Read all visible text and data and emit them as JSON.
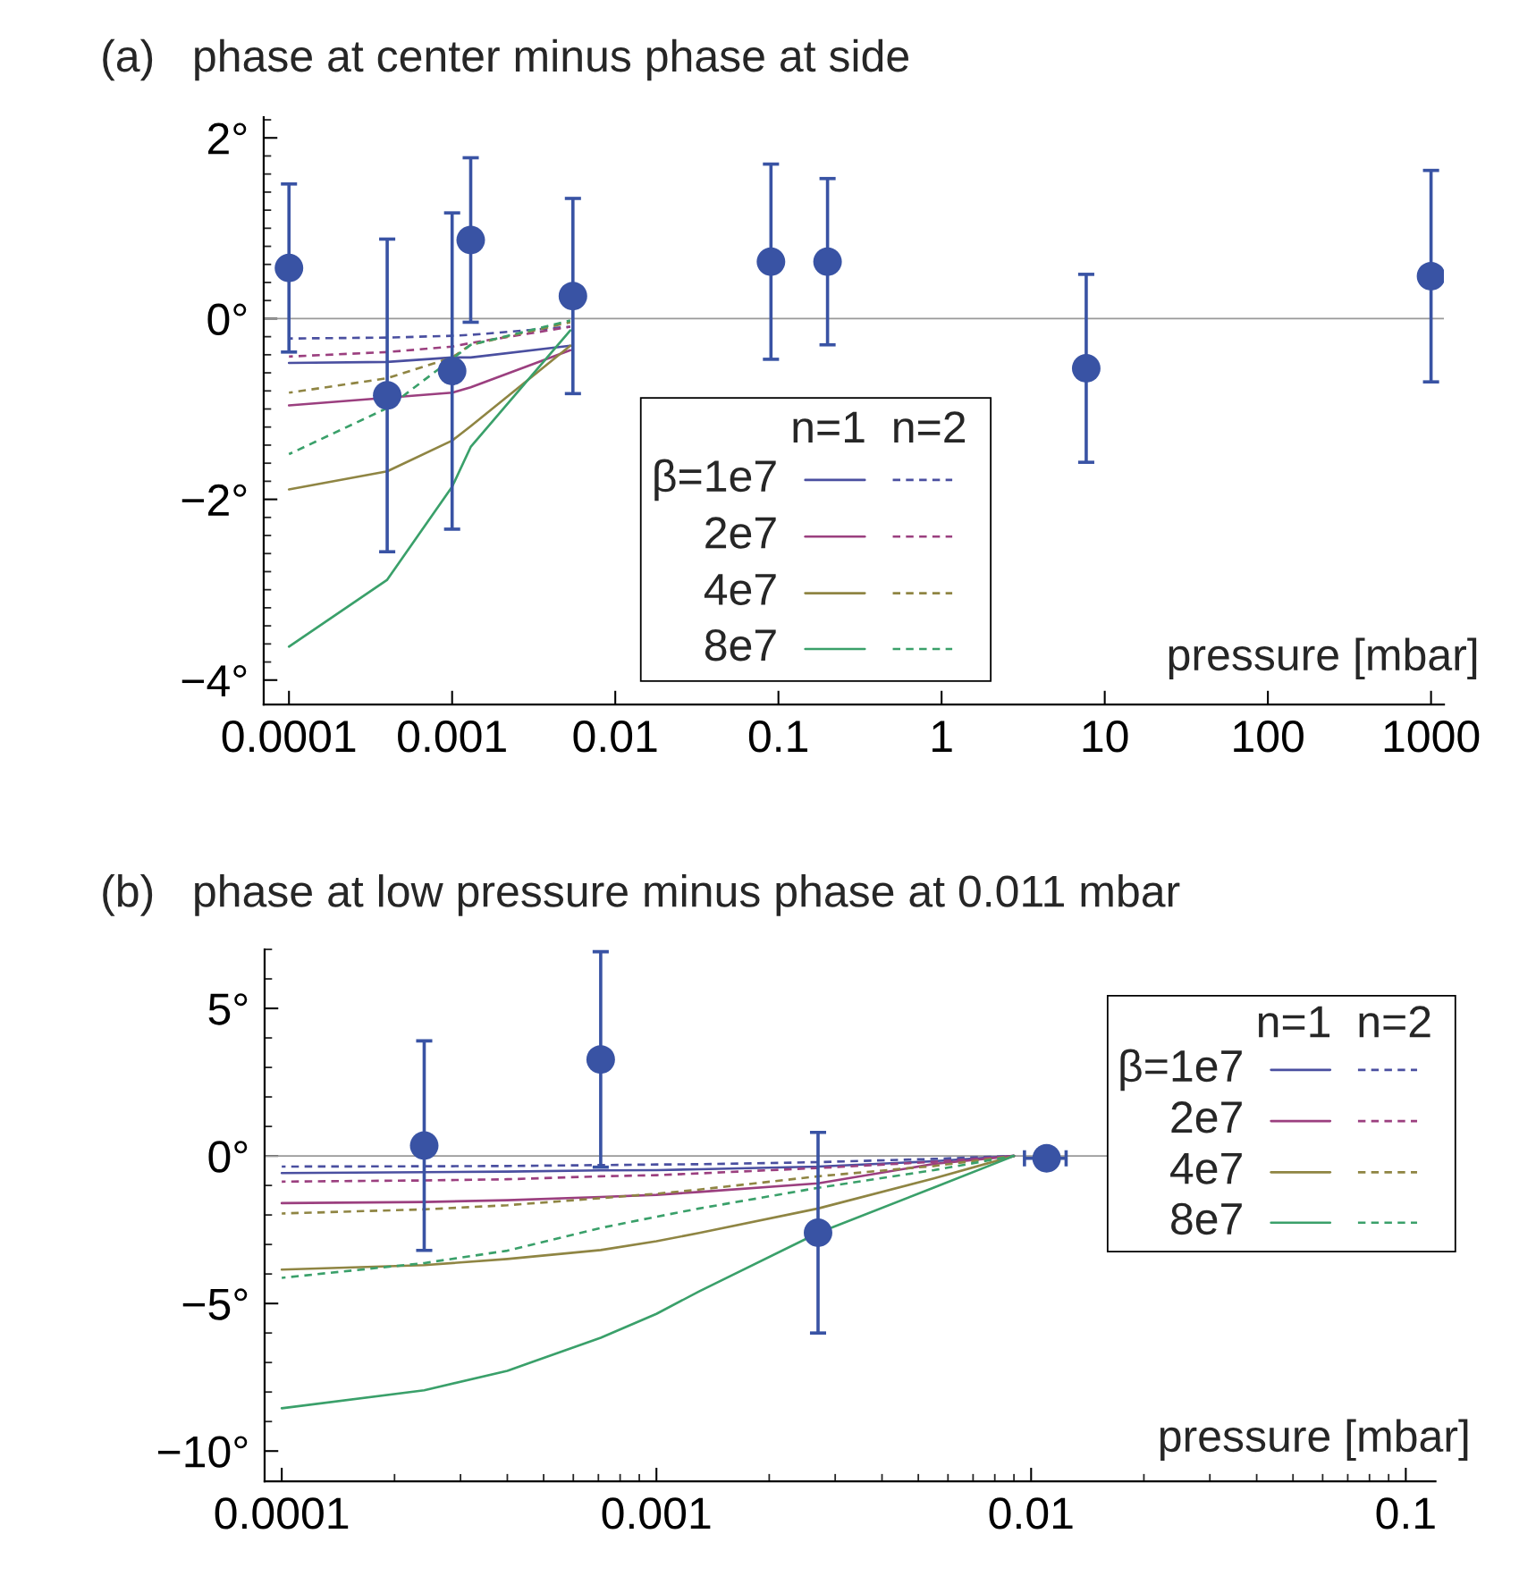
{
  "chart_data": [
    {
      "type": "scatter",
      "title": "(a)   phase at center minus phase at side",
      "xlabel": "pressure [mbar]",
      "log": "x",
      "xlim": [
        7e-05,
        1200
      ],
      "ylim": [
        -4.27,
        2.23
      ],
      "xticks": [
        {
          "value": 0.0001,
          "label": "0.0001"
        },
        {
          "value": 0.001,
          "label": "0.001"
        },
        {
          "value": 0.01,
          "label": "0.01"
        },
        {
          "value": 0.1,
          "label": "0.1"
        },
        {
          "value": 1,
          "label": "1"
        },
        {
          "value": 10,
          "label": "10"
        },
        {
          "value": 100,
          "label": "100"
        },
        {
          "value": 1000,
          "label": "1000"
        }
      ],
      "yticks": [
        {
          "value": 2,
          "label": "2°"
        },
        {
          "value": 0,
          "label": "0°"
        },
        {
          "value": -2,
          "label": "−2°"
        },
        {
          "value": -4,
          "label": "−4°"
        },
        {
          "value": 2.2,
          "label": null
        },
        {
          "value": 1.8,
          "label": null
        },
        {
          "value": 1.6,
          "label": null
        },
        {
          "value": 1.4,
          "label": null
        },
        {
          "value": 1.2,
          "label": null
        },
        {
          "value": 1.0,
          "label": null
        },
        {
          "value": 0.8,
          "label": null
        },
        {
          "value": 0.6,
          "label": null
        },
        {
          "value": 0.4,
          "label": null
        },
        {
          "value": 0.2,
          "label": null
        },
        {
          "value": -0.2,
          "label": null
        },
        {
          "value": -0.4,
          "label": null
        },
        {
          "value": -0.6,
          "label": null
        },
        {
          "value": -0.8,
          "label": null
        },
        {
          "value": -1.0,
          "label": null
        },
        {
          "value": -1.2,
          "label": null
        },
        {
          "value": -1.4,
          "label": null
        },
        {
          "value": -1.6,
          "label": null
        },
        {
          "value": -1.8,
          "label": null
        },
        {
          "value": -2.2,
          "label": null
        },
        {
          "value": -2.4,
          "label": null
        },
        {
          "value": -2.6,
          "label": null
        },
        {
          "value": -2.8,
          "label": null
        },
        {
          "value": -3.0,
          "label": null
        },
        {
          "value": -3.2,
          "label": null
        },
        {
          "value": -3.4,
          "label": null
        },
        {
          "value": -3.6,
          "label": null
        },
        {
          "value": -3.8,
          "label": null
        }
      ],
      "ref_lines": [
        {
          "axis": "y",
          "value": 0,
          "color": "#999999"
        }
      ],
      "legend": "bottom",
      "legend_title": "n=1  n=2",
      "series": [
        {
          "color": "#3953a4",
          "marker": "circle",
          "x": [
            0.0001,
            0.0004,
            0.001,
            0.0013,
            0.0055,
            0.09,
            0.2,
            7.7,
            1000
          ],
          "values": [
            0.56,
            -0.85,
            -0.58,
            0.87,
            0.25,
            0.63,
            0.63,
            -0.55,
            0.47
          ],
          "errors": [
            0.93,
            1.73,
            1.75,
            0.91,
            1.08,
            1.08,
            0.92,
            1.04,
            1.17
          ]
        },
        {
          "type": "line",
          "name": "β=1e7",
          "color": "#4a4fa0",
          "line_style": "solid",
          "x": [
            0.0001,
            0.0004,
            0.001,
            0.0013,
            0.0053
          ],
          "values": [
            -0.49,
            -0.48,
            -0.43,
            -0.43,
            -0.3
          ]
        },
        {
          "type": "line",
          "name": "2e7",
          "color": "#9b3f7f",
          "line_style": "solid",
          "x": [
            0.0001,
            0.001,
            0.0013,
            0.0053
          ],
          "values": [
            -0.96,
            -0.82,
            -0.76,
            -0.35
          ]
        },
        {
          "type": "line",
          "name": "4e7",
          "color": "#8f8543",
          "line_style": "solid",
          "x": [
            0.0001,
            0.0004,
            0.001,
            0.0013,
            0.0053
          ],
          "values": [
            -1.89,
            -1.69,
            -1.35,
            -1.19,
            -0.3
          ]
        },
        {
          "type": "line",
          "name": "8e7",
          "color": "#3aa06a",
          "line_style": "solid",
          "x": [
            0.0001,
            0.0004,
            0.001,
            0.0013,
            0.0053
          ],
          "values": [
            -3.63,
            -2.89,
            -1.86,
            -1.42,
            -0.13
          ]
        },
        {
          "type": "line",
          "color": "#4a4fa0",
          "line_style": "dashed",
          "x": [
            0.0001,
            0.0004,
            0.001,
            0.0013,
            0.0053
          ],
          "values": [
            -0.22,
            -0.21,
            -0.19,
            -0.18,
            -0.09
          ]
        },
        {
          "type": "line",
          "color": "#9b3f7f",
          "line_style": "dashed",
          "x": [
            0.0001,
            0.0004,
            0.001,
            0.0013,
            0.0053
          ],
          "values": [
            -0.42,
            -0.37,
            -0.31,
            -0.27,
            -0.09
          ]
        },
        {
          "type": "line",
          "color": "#8f8543",
          "line_style": "dashed",
          "x": [
            0.0001,
            0.0004,
            0.001,
            0.0013,
            0.0053
          ],
          "values": [
            -0.82,
            -0.66,
            -0.43,
            -0.29,
            -0.04
          ]
        },
        {
          "type": "line",
          "color": "#3aa06a",
          "line_style": "dashed",
          "x": [
            0.0001,
            0.0004,
            0.0013,
            0.0053
          ],
          "values": [
            -1.5,
            -0.99,
            -0.29,
            -0.02
          ]
        }
      ]
    },
    {
      "type": "scatter",
      "title": "(b)   phase at low pressure minus phase at 0.011 mbar",
      "xlabel": "pressure [mbar]",
      "log": "x",
      "xlim": [
        9e-05,
        0.12
      ],
      "ylim": [
        -11.03,
        7
      ],
      "xticks": [
        {
          "value": 0.0001,
          "label": "0.0001"
        },
        {
          "value": 0.001,
          "label": "0.001"
        },
        {
          "value": 0.01,
          "label": "0.01"
        },
        {
          "value": 0.1,
          "label": "0.1"
        },
        {
          "value": 0.0002,
          "label": null
        },
        {
          "value": 0.0003,
          "label": null
        },
        {
          "value": 0.0004,
          "label": null
        },
        {
          "value": 0.0005,
          "label": null
        },
        {
          "value": 0.0006,
          "label": null
        },
        {
          "value": 0.0007,
          "label": null
        },
        {
          "value": 0.0008,
          "label": null
        },
        {
          "value": 0.0009,
          "label": null
        },
        {
          "value": 0.002,
          "label": null
        },
        {
          "value": 0.003,
          "label": null
        },
        {
          "value": 0.004,
          "label": null
        },
        {
          "value": 0.005,
          "label": null
        },
        {
          "value": 0.006,
          "label": null
        },
        {
          "value": 0.007,
          "label": null
        },
        {
          "value": 0.008,
          "label": null
        },
        {
          "value": 0.009,
          "label": null
        },
        {
          "value": 0.02,
          "label": null
        },
        {
          "value": 0.03,
          "label": null
        },
        {
          "value": 0.04,
          "label": null
        },
        {
          "value": 0.05,
          "label": null
        },
        {
          "value": 0.06,
          "label": null
        },
        {
          "value": 0.07,
          "label": null
        },
        {
          "value": 0.08,
          "label": null
        },
        {
          "value": 0.09,
          "label": null
        }
      ],
      "yticks": [
        {
          "value": 5,
          "label": "5°"
        },
        {
          "value": 0,
          "label": "0°"
        },
        {
          "value": -5,
          "label": "−5°"
        },
        {
          "value": -10,
          "label": "−10°"
        },
        {
          "value": 7,
          "label": null
        },
        {
          "value": 6,
          "label": null
        },
        {
          "value": 4,
          "label": null
        },
        {
          "value": 3,
          "label": null
        },
        {
          "value": 2,
          "label": null
        },
        {
          "value": 1,
          "label": null
        },
        {
          "value": -1,
          "label": null
        },
        {
          "value": -2,
          "label": null
        },
        {
          "value": -3,
          "label": null
        },
        {
          "value": -4,
          "label": null
        },
        {
          "value": -6,
          "label": null
        },
        {
          "value": -7,
          "label": null
        },
        {
          "value": -8,
          "label": null
        },
        {
          "value": -9,
          "label": null
        }
      ],
      "ref_lines": [
        {
          "axis": "y",
          "value": 0,
          "color": "#999999"
        }
      ],
      "legend": "top right",
      "legend_title": "n=1  n=2",
      "series": [
        {
          "color": "#3953a4",
          "marker": "circle",
          "x": [
            0.00024,
            0.00071,
            0.0027,
            0.011
          ],
          "values": [
            0.35,
            3.27,
            -2.6,
            -0.08
          ],
          "errors": [
            3.55,
            3.65,
            3.4,
            null
          ],
          "xerrors": [
            null,
            null,
            null,
            0.0014
          ]
        },
        {
          "type": "line",
          "name": "β=1e7",
          "color": "#4a4fa0",
          "line_style": "solid",
          "x": [
            0.0001,
            0.00024,
            0.0004,
            0.00071,
            0.001,
            0.0013,
            0.0027,
            0.0055,
            0.009
          ],
          "values": [
            -0.58,
            -0.55,
            -0.53,
            -0.49,
            -0.48,
            -0.45,
            -0.36,
            -0.18,
            0
          ]
        },
        {
          "type": "line",
          "name": "2e7",
          "color": "#9b3f7f",
          "line_style": "solid",
          "x": [
            0.0001,
            0.00024,
            0.0004,
            0.00071,
            0.001,
            0.0013,
            0.0027,
            0.0055,
            0.009
          ],
          "values": [
            -1.6,
            -1.56,
            -1.5,
            -1.39,
            -1.32,
            -1.22,
            -0.93,
            -0.27,
            0
          ]
        },
        {
          "type": "line",
          "name": "4e7",
          "color": "#8f8543",
          "line_style": "solid",
          "x": [
            0.0001,
            0.00024,
            0.0004,
            0.00071,
            0.001,
            0.0013,
            0.0027,
            0.0055,
            0.009
          ],
          "values": [
            -3.85,
            -3.7,
            -3.49,
            -3.19,
            -2.89,
            -2.61,
            -1.78,
            -0.76,
            0
          ]
        },
        {
          "type": "line",
          "name": "8e7",
          "color": "#3aa06a",
          "line_style": "solid",
          "x": [
            0.0001,
            0.00024,
            0.0004,
            0.00071,
            0.001,
            0.0013,
            0.0027,
            0.0055,
            0.009
          ],
          "values": [
            -8.55,
            -7.94,
            -7.28,
            -6.16,
            -5.35,
            -4.59,
            -2.61,
            -1.07,
            0
          ]
        },
        {
          "type": "line",
          "color": "#4a4fa0",
          "line_style": "dashed",
          "x": [
            0.0001,
            0.00024,
            0.0004,
            0.00071,
            0.001,
            0.0013,
            0.0027,
            0.0055,
            0.009
          ],
          "values": [
            -0.36,
            -0.35,
            -0.34,
            -0.31,
            -0.29,
            -0.28,
            -0.21,
            -0.1,
            0
          ]
        },
        {
          "type": "line",
          "color": "#9b3f7f",
          "line_style": "dashed",
          "x": [
            0.0001,
            0.00024,
            0.0004,
            0.00071,
            0.001,
            0.0013,
            0.0027,
            0.0055,
            0.009
          ],
          "values": [
            -0.87,
            -0.83,
            -0.79,
            -0.69,
            -0.65,
            -0.59,
            -0.41,
            -0.2,
            0
          ]
        },
        {
          "type": "line",
          "color": "#8f8543",
          "line_style": "dashed",
          "x": [
            0.0001,
            0.00024,
            0.0004,
            0.00071,
            0.001,
            0.0013,
            0.0027,
            0.0055,
            0.009
          ],
          "values": [
            -1.95,
            -1.81,
            -1.67,
            -1.43,
            -1.28,
            -1.14,
            -0.69,
            -0.34,
            0
          ]
        },
        {
          "type": "line",
          "color": "#3aa06a",
          "line_style": "dashed",
          "x": [
            0.0001,
            0.00024,
            0.0004,
            0.00071,
            0.001,
            0.0013,
            0.0027,
            0.0055,
            0.009
          ],
          "values": [
            -4.13,
            -3.63,
            -3.21,
            -2.44,
            -2.06,
            -1.78,
            -1.08,
            -0.48,
            0
          ]
        }
      ]
    }
  ]
}
